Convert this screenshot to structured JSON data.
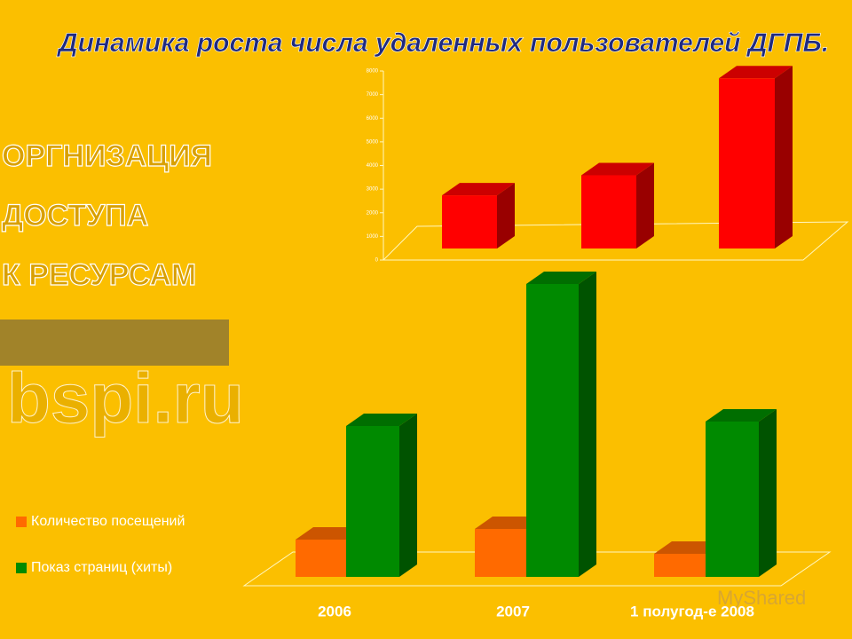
{
  "title": "Динамика роста числа удаленных пользователей ДГПБ.",
  "side_text": [
    "ОРГНИЗАЦИЯ",
    "ДОСТУПА",
    "К РЕСУРСАМ"
  ],
  "logo_text": "bspi.ru",
  "watermark": "MyShared",
  "chart_data": [
    {
      "type": "bar3d",
      "color": "#ff0000",
      "series": [
        {
          "color": "#ff0000",
          "values": [
            2250,
            3100,
            7200
          ]
        }
      ],
      "ylim": [
        0,
        8000
      ],
      "yticks": [
        0,
        1000,
        2000,
        3000,
        4000,
        5000,
        6000,
        7000,
        8000
      ]
    },
    {
      "type": "bar3d",
      "categories": [
        "2006",
        "2007",
        "1 полугод-е 2008"
      ],
      "series": [
        {
          "name": "Количество посещений",
          "color": "#ff6a00",
          "values": [
            42,
            54,
            26
          ]
        },
        {
          "name": "Показ страниц (хиты)",
          "color": "#008a00",
          "values": [
            170,
            330,
            175
          ]
        }
      ],
      "ylim": [
        0,
        340
      ]
    }
  ]
}
